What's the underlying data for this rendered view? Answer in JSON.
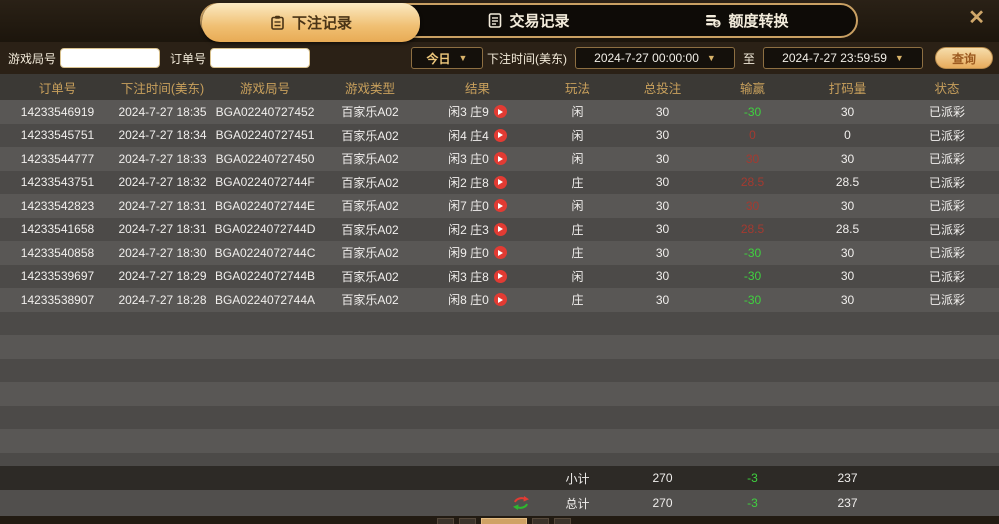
{
  "window": {
    "close_icon": "✕"
  },
  "tabs": [
    {
      "label": "下注记录",
      "icon": "clipboard-icon",
      "active": true
    },
    {
      "label": "交易记录",
      "icon": "document-icon",
      "active": false
    },
    {
      "label": "额度转换",
      "icon": "coins-transfer-icon",
      "active": false
    }
  ],
  "filters": {
    "game_round_label": "游戏局号",
    "game_round_value": "",
    "order_no_label": "订单号",
    "order_no_value": "",
    "quick_range_value": "今日",
    "dropdown_arrow": "▼",
    "bet_time_label": "下注时间(美东)",
    "time_from": "2024-7-27 00:00:00",
    "to_label": "至",
    "time_to": "2024-7-27 23:59:59",
    "search_label": "查询"
  },
  "table": {
    "headers": [
      "订单号",
      "下注时间(美东)",
      "游戏局号",
      "游戏类型",
      "结果",
      "玩法",
      "总投注",
      "输赢",
      "打码量",
      "状态"
    ],
    "rows": [
      {
        "order": "14233546919",
        "time": "2024-7-27 18:35",
        "round": "BGA02240727452",
        "game": "百家乐A02",
        "result": "闲3 庄9",
        "play": "闲",
        "bet": "30",
        "winloss": "-30",
        "wl_color": "green",
        "turnover": "30",
        "status": "已派彩"
      },
      {
        "order": "14233545751",
        "time": "2024-7-27 18:34",
        "round": "BGA02240727451",
        "game": "百家乐A02",
        "result": "闲4 庄4",
        "play": "闲",
        "bet": "30",
        "winloss": "0",
        "wl_color": "red",
        "turnover": "0",
        "status": "已派彩"
      },
      {
        "order": "14233544777",
        "time": "2024-7-27 18:33",
        "round": "BGA02240727450",
        "game": "百家乐A02",
        "result": "闲3 庄0",
        "play": "闲",
        "bet": "30",
        "winloss": "30",
        "wl_color": "red",
        "turnover": "30",
        "status": "已派彩"
      },
      {
        "order": "14233543751",
        "time": "2024-7-27 18:32",
        "round": "BGA0224072744F",
        "game": "百家乐A02",
        "result": "闲2 庄8",
        "play": "庄",
        "bet": "30",
        "winloss": "28.5",
        "wl_color": "red",
        "turnover": "28.5",
        "status": "已派彩"
      },
      {
        "order": "14233542823",
        "time": "2024-7-27 18:31",
        "round": "BGA0224072744E",
        "game": "百家乐A02",
        "result": "闲7 庄0",
        "play": "闲",
        "bet": "30",
        "winloss": "30",
        "wl_color": "red",
        "turnover": "30",
        "status": "已派彩"
      },
      {
        "order": "14233541658",
        "time": "2024-7-27 18:31",
        "round": "BGA0224072744D",
        "game": "百家乐A02",
        "result": "闲2 庄3",
        "play": "庄",
        "bet": "30",
        "winloss": "28.5",
        "wl_color": "red",
        "turnover": "28.5",
        "status": "已派彩"
      },
      {
        "order": "14233540858",
        "time": "2024-7-27 18:30",
        "round": "BGA0224072744C",
        "game": "百家乐A02",
        "result": "闲9 庄0",
        "play": "庄",
        "bet": "30",
        "winloss": "-30",
        "wl_color": "green",
        "turnover": "30",
        "status": "已派彩"
      },
      {
        "order": "14233539697",
        "time": "2024-7-27 18:29",
        "round": "BGA0224072744B",
        "game": "百家乐A02",
        "result": "闲3 庄8",
        "play": "闲",
        "bet": "30",
        "winloss": "-30",
        "wl_color": "green",
        "turnover": "30",
        "status": "已派彩"
      },
      {
        "order": "14233538907",
        "time": "2024-7-27 18:28",
        "round": "BGA0224072744A",
        "game": "百家乐A02",
        "result": "闲8 庄0",
        "play": "庄",
        "bet": "30",
        "winloss": "-30",
        "wl_color": "green",
        "turnover": "30",
        "status": "已派彩"
      }
    ],
    "subtotal": {
      "label": "小计",
      "bet": "270",
      "winloss": "-3",
      "turnover": "237"
    },
    "total": {
      "label": "总计",
      "bet": "270",
      "winloss": "-3",
      "turnover": "237"
    }
  },
  "colors": {
    "accent_gold": "#c9a063",
    "win_positive_red": "#a43a30",
    "loss_negative_green": "#3fd13f",
    "active_tab_gradient_top": "#fbeac2",
    "active_tab_gradient_bottom": "#e8ab55"
  }
}
